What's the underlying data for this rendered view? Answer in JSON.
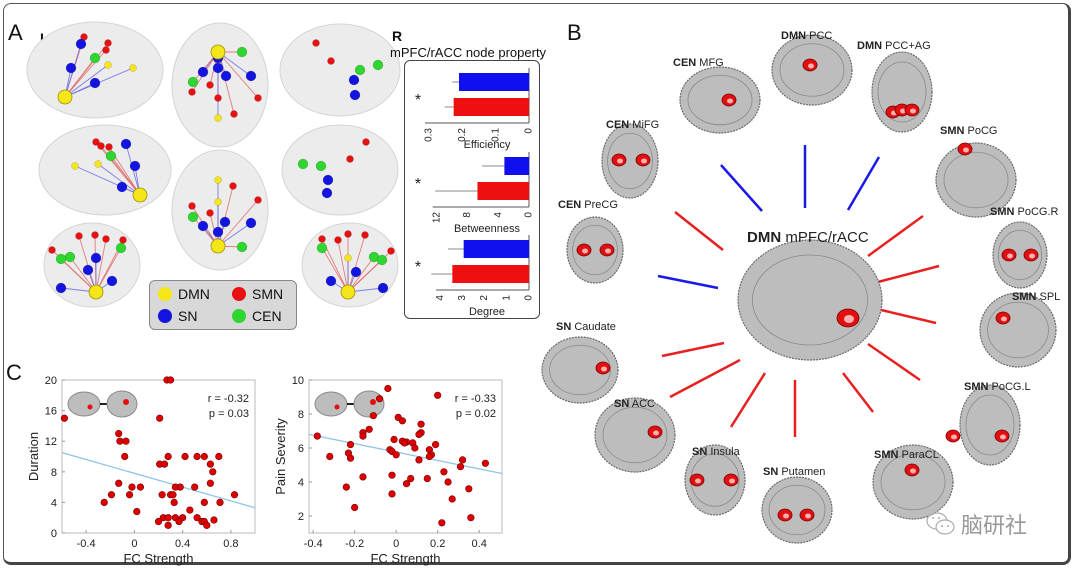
{
  "panels": {
    "A": {
      "letter": "A",
      "left_label": "L",
      "right_label": "R",
      "legend": [
        {
          "name": "DMN",
          "color": "#f5e61a"
        },
        {
          "name": "SMN",
          "color": "#e81010"
        },
        {
          "name": "SN",
          "color": "#1414e0"
        },
        {
          "name": "CEN",
          "color": "#2fd62f"
        }
      ]
    },
    "B": {
      "letter": "B",
      "center": {
        "network": "DMN",
        "region": "mPFC/rACC"
      },
      "regions": [
        {
          "network": "CEN",
          "region": "MFG",
          "conn": "negative"
        },
        {
          "network": "DMN",
          "region": "PCC",
          "conn": "negative"
        },
        {
          "network": "DMN",
          "region": "PCC+AG",
          "conn": "negative"
        },
        {
          "network": "CEN",
          "region": "MiFG",
          "conn": "positive"
        },
        {
          "network": "SMN",
          "region": "PoCG",
          "conn": "positive"
        },
        {
          "network": "CEN",
          "region": "PreCG",
          "conn": "negative"
        },
        {
          "network": "SMN",
          "region": "PoCG.R",
          "conn": "positive"
        },
        {
          "network": "SMN",
          "region": "SPL",
          "conn": "positive"
        },
        {
          "network": "SN",
          "region": "Caudate",
          "conn": "positive"
        },
        {
          "network": "SN",
          "region": "ACC",
          "conn": "positive"
        },
        {
          "network": "SN",
          "region": "Insula",
          "conn": "positive"
        },
        {
          "network": "SN",
          "region": "Putamen",
          "conn": "positive"
        },
        {
          "network": "SMN",
          "region": "ParaCL",
          "conn": "positive"
        },
        {
          "network": "SMN",
          "region": "PoCG.L",
          "conn": "positive"
        }
      ],
      "colors": {
        "positive": "#e82020",
        "negative": "#1a1ae8"
      }
    },
    "C": {
      "letter": "C"
    }
  },
  "watermark": "脑研社",
  "chart_data": [
    {
      "type": "bar",
      "orientation": "horizontal",
      "title": "mPFC/rACC node property",
      "significance": "*",
      "series_colors": {
        "blue": "#1010ee",
        "red": "#ee1010"
      },
      "subplots": [
        {
          "xlabel": "Efficiency",
          "ticks": [
            "0.3",
            "0.2",
            "0.1",
            "0"
          ],
          "xlim": [
            0.3,
            0
          ],
          "tick_values": [
            0.3,
            0.2,
            0.1,
            0
          ],
          "values": [
            {
              "series": "blue",
              "value": 0.21,
              "err": 0.02
            },
            {
              "series": "red",
              "value": 0.226,
              "err": 0.027
            }
          ]
        },
        {
          "xlabel": "Betweenness",
          "ticks": [
            "12",
            "8",
            "4",
            "0"
          ],
          "xlim": [
            13,
            0
          ],
          "tick_values": [
            12,
            8,
            4,
            0
          ],
          "values": [
            {
              "series": "blue",
              "value": 3.2,
              "err": 2.9
            },
            {
              "series": "red",
              "value": 6.7,
              "err": 5.5
            }
          ]
        },
        {
          "xlabel": "Degree",
          "ticks": [
            "4",
            "3",
            "2",
            "1",
            "0"
          ],
          "xlim": [
            4.5,
            0
          ],
          "tick_values": [
            4,
            3,
            2,
            1,
            0
          ],
          "values": [
            {
              "series": "blue",
              "value": 2.94,
              "err": 0.7
            },
            {
              "series": "red",
              "value": 3.45,
              "err": 0.95
            }
          ]
        }
      ]
    },
    {
      "type": "scatter",
      "xlabel": "FC Strength",
      "ylabel": "Duration",
      "xlim": [
        -0.6,
        1.0
      ],
      "ylim": [
        0,
        20
      ],
      "xticks": [
        -0.4,
        0,
        0.4,
        0.8
      ],
      "xtick_labels": [
        "-0.4",
        "0",
        "0.4",
        "0.8"
      ],
      "yticks": [
        0,
        4,
        8,
        12,
        16,
        20
      ],
      "ytick_labels": [
        "0",
        "4",
        "8",
        "12",
        "16",
        "20"
      ],
      "stats": {
        "r": "r = -0.32",
        "p": "p = 0.03"
      },
      "fit_line": [
        [
          -0.6,
          10.5
        ],
        [
          1.0,
          3.3
        ]
      ],
      "points": [
        [
          -0.58,
          15
        ],
        [
          0.27,
          20
        ],
        [
          0.3,
          20
        ],
        [
          0.21,
          15
        ],
        [
          -0.13,
          13
        ],
        [
          -0.12,
          12
        ],
        [
          -0.07,
          12
        ],
        [
          -0.08,
          10
        ],
        [
          0.28,
          10
        ],
        [
          0.42,
          10
        ],
        [
          0.52,
          10
        ],
        [
          0.58,
          10
        ],
        [
          0.7,
          10
        ],
        [
          0.21,
          9
        ],
        [
          0.25,
          9
        ],
        [
          0.63,
          9
        ],
        [
          0.65,
          8
        ],
        [
          -0.13,
          6.5
        ],
        [
          0.63,
          6.5
        ],
        [
          -0.02,
          6
        ],
        [
          0.05,
          6
        ],
        [
          0.34,
          6
        ],
        [
          0.38,
          6
        ],
        [
          0.5,
          6
        ],
        [
          -0.19,
          5
        ],
        [
          -0.04,
          5
        ],
        [
          0.23,
          5
        ],
        [
          0.3,
          5
        ],
        [
          0.32,
          5
        ],
        [
          0.83,
          5
        ],
        [
          -0.25,
          4
        ],
        [
          0.33,
          4
        ],
        [
          0.58,
          4
        ],
        [
          0.71,
          4
        ],
        [
          0.46,
          3
        ],
        [
          0.02,
          2.8
        ],
        [
          0.24,
          2
        ],
        [
          0.28,
          2
        ],
        [
          0.34,
          2
        ],
        [
          0.4,
          2
        ],
        [
          0.52,
          2
        ],
        [
          0.2,
          1.5
        ],
        [
          0.37,
          1.5
        ],
        [
          0.56,
          1.5
        ],
        [
          0.58,
          1.5
        ],
        [
          0.66,
          1.7
        ],
        [
          0.28,
          1
        ],
        [
          0.6,
          1
        ]
      ]
    },
    {
      "type": "scatter",
      "xlabel": "FC Strength",
      "ylabel": "Pain Severity",
      "xlim": [
        -0.42,
        0.51
      ],
      "ylim": [
        1,
        10
      ],
      "xticks": [
        -0.4,
        -0.2,
        0,
        0.2,
        0.4
      ],
      "xtick_labels": [
        "-0.4",
        "-0.2",
        "0",
        "0.2",
        "0.4"
      ],
      "yticks": [
        2,
        4,
        6,
        8,
        10
      ],
      "ytick_labels": [
        "2",
        "4",
        "6",
        "8",
        "10"
      ],
      "stats": {
        "r": "r = -0.33",
        "p": "p = 0.02"
      },
      "fit_line": [
        [
          -0.42,
          6.8
        ],
        [
          0.51,
          4.5
        ]
      ],
      "points": [
        [
          -0.38,
          6.7
        ],
        [
          -0.32,
          5.5
        ],
        [
          -0.22,
          6.2
        ],
        [
          -0.23,
          5.7
        ],
        [
          -0.22,
          5.4
        ],
        [
          -0.24,
          3.7
        ],
        [
          -0.2,
          2.5
        ],
        [
          -0.16,
          6.9
        ],
        [
          -0.16,
          6.7
        ],
        [
          -0.13,
          7.1
        ],
        [
          -0.11,
          7.9
        ],
        [
          -0.16,
          4.3
        ],
        [
          -0.08,
          8.9
        ],
        [
          -0.04,
          9.5
        ],
        [
          -0.03,
          5.9
        ],
        [
          -0.02,
          5.8
        ],
        [
          -0.01,
          6.5
        ],
        [
          0.0,
          5.6
        ],
        [
          -0.02,
          4.4
        ],
        [
          -0.02,
          3.3
        ],
        [
          0.01,
          7.8
        ],
        [
          0.03,
          7.6
        ],
        [
          0.03,
          6.4
        ],
        [
          0.05,
          6.35
        ],
        [
          0.04,
          6.3
        ],
        [
          0.08,
          6.3
        ],
        [
          0.09,
          6.0
        ],
        [
          0.07,
          4.2
        ],
        [
          0.05,
          3.9
        ],
        [
          0.12,
          7.4
        ],
        [
          0.12,
          6.9
        ],
        [
          0.11,
          6.8
        ],
        [
          0.11,
          5.3
        ],
        [
          0.16,
          5.9
        ],
        [
          0.17,
          5.6
        ],
        [
          0.16,
          5.5
        ],
        [
          0.19,
          6.2
        ],
        [
          0.15,
          4.2
        ],
        [
          0.2,
          9.1
        ],
        [
          0.23,
          4.6
        ],
        [
          0.25,
          4.0
        ],
        [
          0.27,
          3.0
        ],
        [
          0.22,
          1.6
        ],
        [
          0.31,
          4.9
        ],
        [
          0.32,
          5.3
        ],
        [
          0.35,
          3.6
        ],
        [
          0.36,
          1.9
        ],
        [
          0.43,
          5.1
        ]
      ]
    }
  ]
}
